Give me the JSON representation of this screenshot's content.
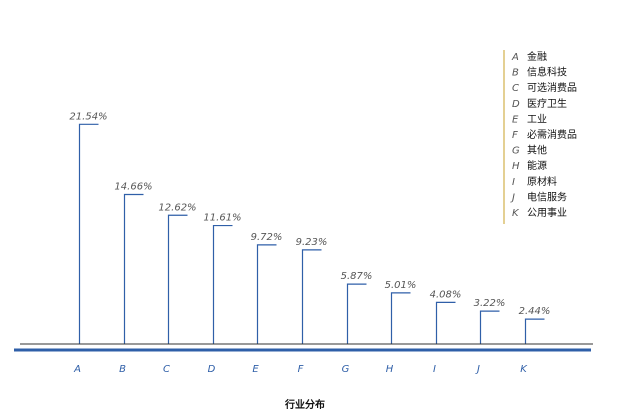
{
  "chart_data": {
    "type": "bar",
    "categories": [
      "A",
      "B",
      "C",
      "D",
      "E",
      "F",
      "G",
      "H",
      "I",
      "J",
      "K"
    ],
    "values": [
      21.54,
      14.66,
      12.62,
      11.61,
      9.72,
      9.23,
      5.87,
      5.01,
      4.08,
      3.22,
      2.44
    ],
    "value_labels": [
      "21.54%",
      "14.66%",
      "12.62%",
      "11.61%",
      "9.72%",
      "9.23%",
      "5.87%",
      "5.01%",
      "4.08%",
      "3.22%",
      "2.44%"
    ],
    "xlabel": "行业分布",
    "ylabel": "",
    "ylim": [
      0,
      25
    ],
    "grid": false,
    "legend_position": "top-right",
    "legend": [
      {
        "key": "A",
        "label": "金融"
      },
      {
        "key": "B",
        "label": "信息科技"
      },
      {
        "key": "C",
        "label": "可选消费品"
      },
      {
        "key": "D",
        "label": "医疗卫生"
      },
      {
        "key": "E",
        "label": "工业"
      },
      {
        "key": "F",
        "label": "必需消费品"
      },
      {
        "key": "G",
        "label": "其他"
      },
      {
        "key": "H",
        "label": "能源"
      },
      {
        "key": "I",
        "label": "原材料"
      },
      {
        "key": "J",
        "label": "电信服务"
      },
      {
        "key": "K",
        "label": "公用事业"
      }
    ],
    "colors": {
      "bar": "#2f5fa8",
      "baseline": "#2f5fa8",
      "legend_rule": "#c9a227"
    }
  }
}
